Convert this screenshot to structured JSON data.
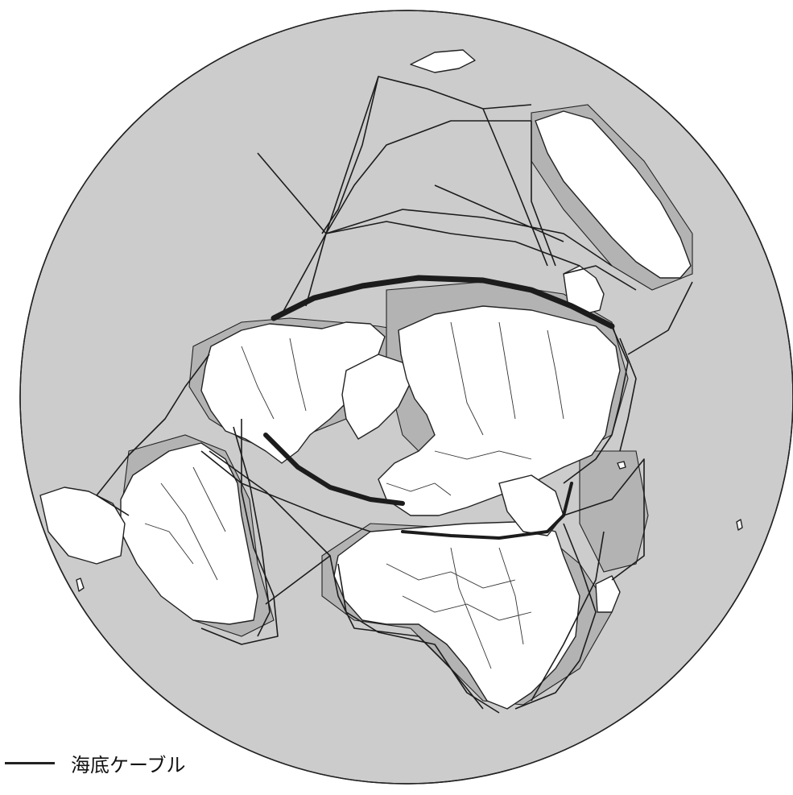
{
  "map": {
    "projection": "north-polar-azimuthal",
    "ocean_color": "#cccccc",
    "land_color": "#ffffff",
    "cable_color": "#1c1c1c"
  },
  "legend": {
    "items": [
      {
        "label": "海底ケーブル",
        "symbol": "line"
      }
    ]
  }
}
